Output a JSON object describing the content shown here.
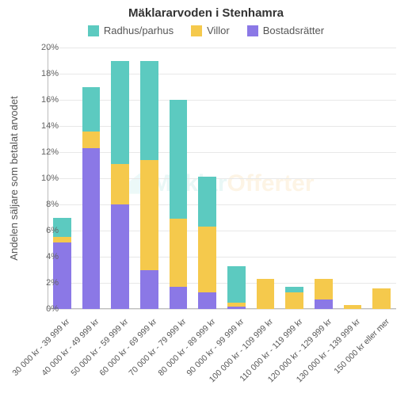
{
  "chart": {
    "type": "stacked-bar",
    "title": "Mäklararvoden i Stenhamra",
    "title_fontsize": 15,
    "background_color": "#ffffff",
    "grid_color": "#e8e8e8",
    "axis_color": "#bbbbbb",
    "label_color": "#555555",
    "y_axis_title": "Andelen säljare som betalat arvodet",
    "ylim": [
      0,
      20
    ],
    "ytick_step": 2,
    "ytick_suffix": "%",
    "bar_width_ratio": 0.62,
    "legend": [
      {
        "key": "radhus",
        "label": "Radhus/parhus",
        "color": "#5ccac0"
      },
      {
        "key": "villor",
        "label": "Villor",
        "color": "#f5c94c"
      },
      {
        "key": "bostad",
        "label": "Bostadsrätter",
        "color": "#8b78e6"
      }
    ],
    "categories": [
      "30 000 kr - 39 999 kr",
      "40 000 kr - 49 999 kr",
      "50 000 kr - 59 999 kr",
      "60 000 kr - 69 999 kr",
      "70 000 kr - 79 999 kr",
      "80 000 kr - 89 999 kr",
      "90 000 kr - 99 999 kr",
      "100 000 kr - 109 999 kr",
      "110 000 kr - 119 999 kr",
      "120 000 kr - 129 999 kr",
      "130 000 kr - 139 999 kr",
      "150 000 kr eller mer"
    ],
    "series": {
      "bostad": [
        5.1,
        12.3,
        8.0,
        3.0,
        1.7,
        1.3,
        0.2,
        0.0,
        0.0,
        0.7,
        0.0,
        0.0
      ],
      "villor": [
        0.4,
        1.3,
        3.1,
        8.4,
        5.2,
        5.0,
        0.3,
        2.3,
        1.3,
        1.6,
        0.3,
        1.6
      ],
      "radhus": [
        1.5,
        3.4,
        7.9,
        7.6,
        9.1,
        3.8,
        2.8,
        0.0,
        0.4,
        0.0,
        0.0,
        0.0
      ]
    },
    "watermark": {
      "prefix": "Mäklar",
      "suffix": "Offerter"
    }
  }
}
